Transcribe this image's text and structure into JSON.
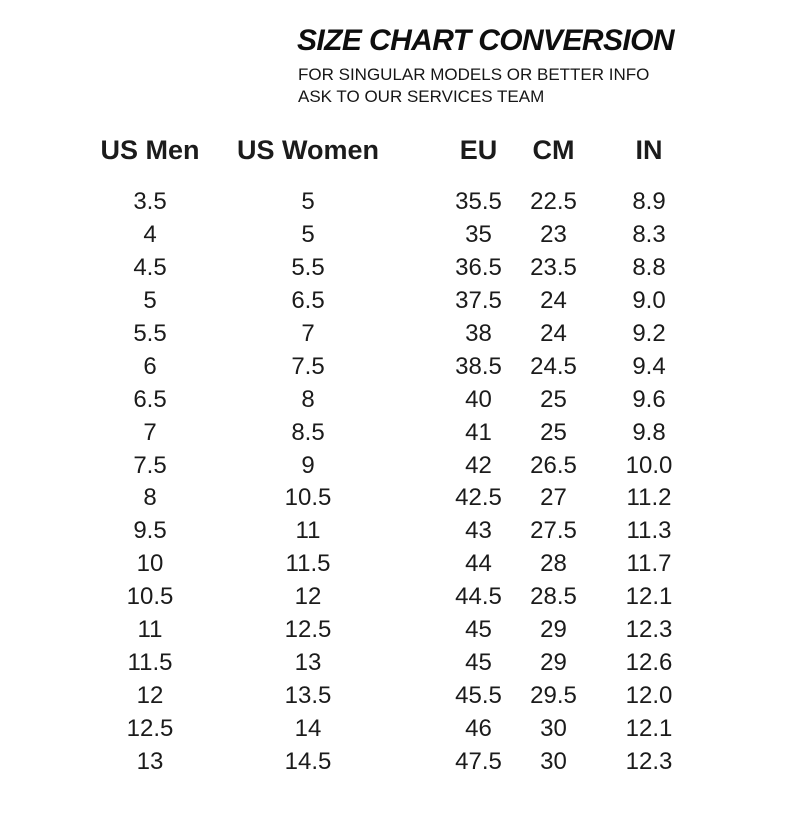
{
  "header": {
    "title": "SIZE CHART CONVERSION",
    "subtitle_line1": "FOR SINGULAR MODELS OR BETTER INFO",
    "subtitle_line2": "ASK TO OUR SERVICES TEAM"
  },
  "chart_data": {
    "type": "table",
    "title": "SIZE CHART CONVERSION",
    "columns": [
      "US Men",
      "US Women",
      "EU",
      "CM",
      "IN"
    ],
    "rows": [
      [
        "3.5",
        "5",
        "35.5",
        "22.5",
        "8.9"
      ],
      [
        "4",
        "5",
        "35",
        "23",
        "8.3"
      ],
      [
        "4.5",
        "5.5",
        "36.5",
        "23.5",
        "8.8"
      ],
      [
        "5",
        "6.5",
        "37.5",
        "24",
        "9.0"
      ],
      [
        "5.5",
        "7",
        "38",
        "24",
        "9.2"
      ],
      [
        "6",
        "7.5",
        "38.5",
        "24.5",
        "9.4"
      ],
      [
        "6.5",
        "8",
        "40",
        "25",
        "9.6"
      ],
      [
        "7",
        "8.5",
        "41",
        "25",
        "9.8"
      ],
      [
        "7.5",
        "9",
        "42",
        "26.5",
        "10.0"
      ],
      [
        "8",
        "10.5",
        "42.5",
        "27",
        "11.2"
      ],
      [
        "9.5",
        "11",
        "43",
        "27.5",
        "11.3"
      ],
      [
        "10",
        "11.5",
        "44",
        "28",
        "11.7"
      ],
      [
        "10.5",
        "12",
        "44.5",
        "28.5",
        "12.1"
      ],
      [
        "11",
        "12.5",
        "45",
        "29",
        "12.3"
      ],
      [
        "11.5",
        "13",
        "45",
        "29",
        "12.6"
      ],
      [
        "12",
        "13.5",
        "45.5",
        "29.5",
        "12.0"
      ],
      [
        "12.5",
        "14",
        "46",
        "30",
        "12.1"
      ],
      [
        "13",
        "14.5",
        "47.5",
        "30",
        "12.3"
      ]
    ]
  },
  "colors": {
    "text": "#1b1b1b",
    "title": "#0e0e0e",
    "background": "#ffffff"
  }
}
